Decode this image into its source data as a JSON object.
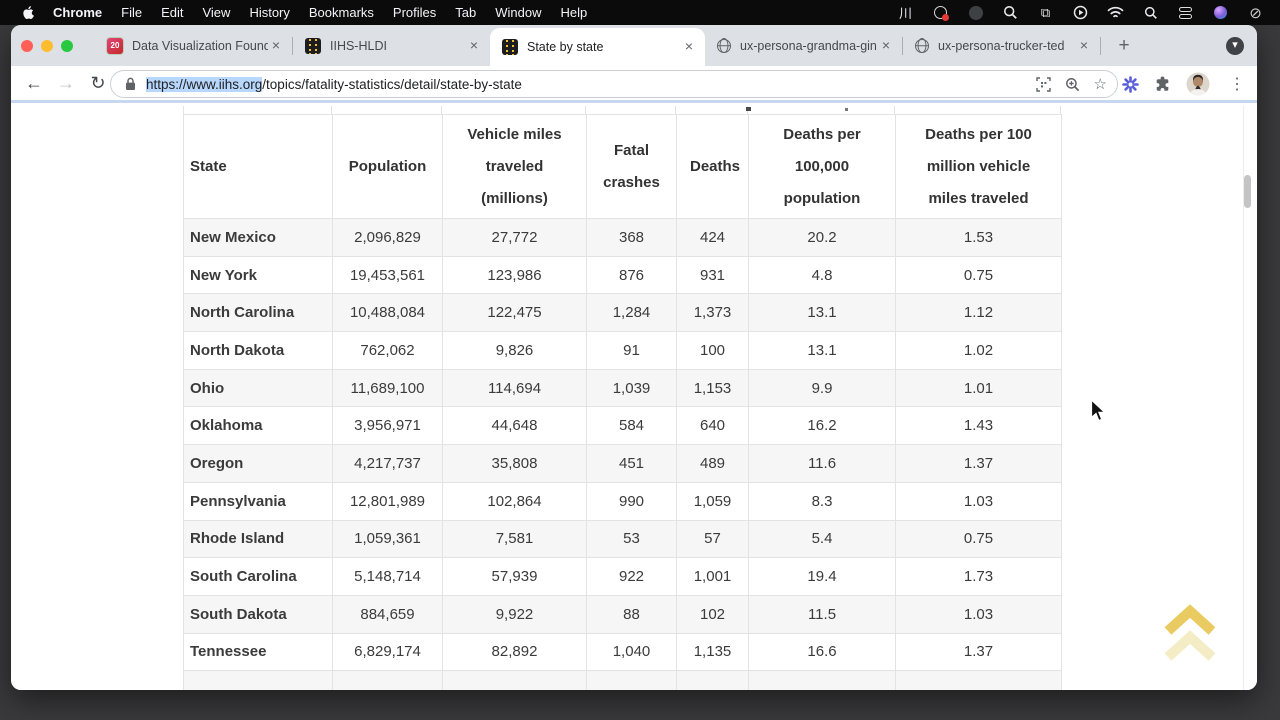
{
  "menu_bar": {
    "app_name": "Chrome",
    "items": [
      "File",
      "Edit",
      "View",
      "History",
      "Bookmarks",
      "Profiles",
      "Tab",
      "Window",
      "Help"
    ],
    "status_icon_names": [
      "waves-icon",
      "audio-share-icon",
      "screen-dim-icon",
      "zoom-tool-icon",
      "window-stack-icon",
      "now-playing-icon",
      "wifi-icon",
      "spotlight-icon",
      "control-center-icon",
      "assistant-icon",
      "do-not-disturb-icon"
    ],
    "icon_glyphs": {
      "waves": "川",
      "windows": "⧉",
      "dnd": "⊘"
    }
  },
  "browser": {
    "tabs": [
      {
        "title": "Data Visualization Founda",
        "favicon": "course20",
        "favicon_label": "20",
        "active": false
      },
      {
        "title": "IIHS-HLDI",
        "favicon": "road",
        "active": false
      },
      {
        "title": "State by state",
        "favicon": "road",
        "active": true
      },
      {
        "title": "ux-persona-grandma-gin",
        "favicon": "globe",
        "active": false
      },
      {
        "title": "ux-persona-trucker-ted",
        "favicon": "globe",
        "active": false
      }
    ],
    "glyphs": {
      "close": "×",
      "plus": "+",
      "caret": "▾",
      "back": "←",
      "forward": "→",
      "reload": "↻",
      "star": "☆",
      "kebab": "⋮"
    },
    "url_selected": "https://www.iihs.org",
    "url_rest": "/topics/fatality-statistics/detail/state-by-state"
  },
  "table": {
    "headers": [
      "State",
      "Population",
      "Vehicle miles traveled (millions)",
      "Fatal crashes",
      "Deaths",
      "Deaths per 100,000 population",
      "Deaths per 100 million vehicle miles traveled"
    ],
    "rows": [
      [
        "New Mexico",
        "2,096,829",
        "27,772",
        "368",
        "424",
        "20.2",
        "1.53"
      ],
      [
        "New York",
        "19,453,561",
        "123,986",
        "876",
        "931",
        "4.8",
        "0.75"
      ],
      [
        "North Carolina",
        "10,488,084",
        "122,475",
        "1,284",
        "1,373",
        "13.1",
        "1.12"
      ],
      [
        "North Dakota",
        "762,062",
        "9,826",
        "91",
        "100",
        "13.1",
        "1.02"
      ],
      [
        "Ohio",
        "11,689,100",
        "114,694",
        "1,039",
        "1,153",
        "9.9",
        "1.01"
      ],
      [
        "Oklahoma",
        "3,956,971",
        "44,648",
        "584",
        "640",
        "16.2",
        "1.43"
      ],
      [
        "Oregon",
        "4,217,737",
        "35,808",
        "451",
        "489",
        "11.6",
        "1.37"
      ],
      [
        "Pennsylvania",
        "12,801,989",
        "102,864",
        "990",
        "1,059",
        "8.3",
        "1.03"
      ],
      [
        "Rhode Island",
        "1,059,361",
        "7,581",
        "53",
        "57",
        "5.4",
        "0.75"
      ],
      [
        "South Carolina",
        "5,148,714",
        "57,939",
        "922",
        "1,001",
        "19.4",
        "1.73"
      ],
      [
        "South Dakota",
        "884,659",
        "9,922",
        "88",
        "102",
        "11.5",
        "1.03"
      ],
      [
        "Tennessee",
        "6,829,174",
        "82,892",
        "1,040",
        "1,135",
        "16.6",
        "1.37"
      ]
    ]
  },
  "colors": {
    "selection_blue": "#b8d7fd",
    "traffic_red": "#ff5f57",
    "traffic_yellow": "#febc2e",
    "traffic_green": "#28c840",
    "road_favicon_yellow": "#f2c230",
    "scroll_top_gold": "#e4be39"
  }
}
